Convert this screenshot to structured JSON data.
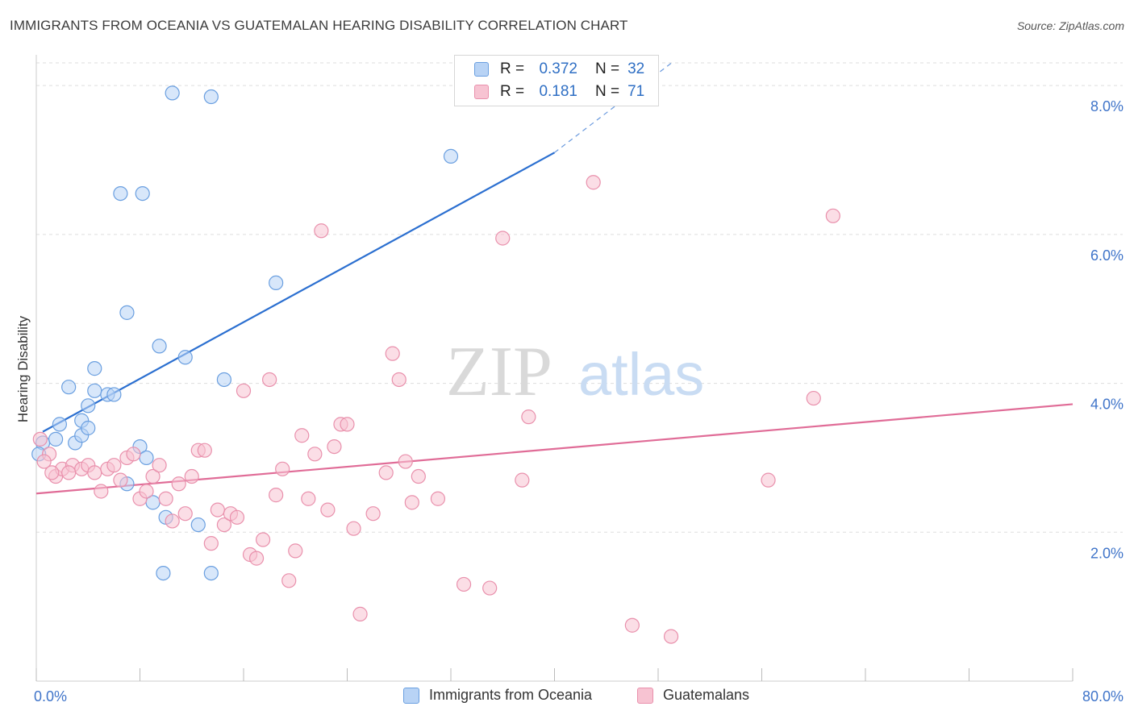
{
  "header": {
    "title": "IMMIGRANTS FROM OCEANIA VS GUATEMALAN HEARING DISABILITY CORRELATION CHART",
    "source": "Source: ZipAtlas.com"
  },
  "watermark": {
    "zip": "ZIP",
    "atlas": "atlas"
  },
  "legend_top": {
    "rows": [
      {
        "r_label": "R =",
        "r_value": "0.372",
        "n_label": "N =",
        "n_value": "32"
      },
      {
        "r_label": "R =",
        "r_value": "0.181",
        "n_label": "N =",
        "n_value": "71"
      }
    ]
  },
  "legend_bottom": {
    "items": [
      {
        "label": "Immigrants from Oceania"
      },
      {
        "label": "Guatemalans"
      }
    ]
  },
  "colors": {
    "blue_fill": "#b8d3f5",
    "blue_stroke": "#6a9fe0",
    "blue_line": "#2b6fd0",
    "pink_fill": "#f7c3d2",
    "pink_stroke": "#e990ac",
    "pink_line": "#e06c97",
    "tick_label": "#3f74c9",
    "grid": "#dddddd"
  },
  "chart_data": {
    "type": "scatter",
    "ylabel": "Hearing Disability",
    "xlim": [
      0,
      80
    ],
    "ylim": [
      0,
      8.5
    ],
    "x_tick_labels": [
      "0.0%",
      "80.0%"
    ],
    "y_ticks": [
      2,
      4,
      6,
      8
    ],
    "y_tick_labels": [
      "2.0%",
      "4.0%",
      "6.0%",
      "8.0%"
    ],
    "grid": true,
    "legend": "top-center",
    "series": [
      {
        "name": "Immigrants from Oceania",
        "color": "blue",
        "points": [
          [
            0.5,
            3.2
          ],
          [
            1.5,
            3.25
          ],
          [
            3.0,
            3.2
          ],
          [
            1.8,
            3.45
          ],
          [
            3.5,
            3.5
          ],
          [
            4.0,
            3.7
          ],
          [
            2.5,
            3.95
          ],
          [
            4.5,
            3.9
          ],
          [
            5.5,
            3.85
          ],
          [
            6.0,
            3.85
          ],
          [
            4.5,
            4.2
          ],
          [
            3.5,
            3.3
          ],
          [
            4.0,
            3.4
          ],
          [
            7.0,
            4.95
          ],
          [
            9.5,
            4.5
          ],
          [
            11.5,
            4.35
          ],
          [
            8.0,
            3.15
          ],
          [
            8.5,
            3.0
          ],
          [
            7.0,
            2.65
          ],
          [
            9.0,
            2.4
          ],
          [
            10.0,
            2.2
          ],
          [
            12.5,
            2.1
          ],
          [
            14.5,
            4.05
          ],
          [
            18.5,
            5.35
          ],
          [
            6.5,
            6.55
          ],
          [
            8.2,
            6.55
          ],
          [
            10.5,
            7.9
          ],
          [
            13.5,
            7.85
          ],
          [
            32.0,
            7.05
          ],
          [
            9.8,
            1.45
          ],
          [
            13.5,
            1.45
          ],
          [
            0.2,
            3.05
          ]
        ],
        "trend": {
          "x": [
            0.5,
            40
          ],
          "y": [
            3.35,
            7.1
          ],
          "dashed_to": [
            49,
            8.3
          ]
        }
      },
      {
        "name": "Guatemalans",
        "color": "pink",
        "points": [
          [
            0.3,
            3.25
          ],
          [
            1.0,
            3.05
          ],
          [
            1.5,
            2.75
          ],
          [
            2.0,
            2.85
          ],
          [
            2.8,
            2.9
          ],
          [
            3.5,
            2.85
          ],
          [
            4.0,
            2.9
          ],
          [
            4.5,
            2.8
          ],
          [
            5.0,
            2.55
          ],
          [
            5.5,
            2.85
          ],
          [
            6.0,
            2.9
          ],
          [
            6.5,
            2.7
          ],
          [
            7.0,
            3.0
          ],
          [
            7.5,
            3.05
          ],
          [
            8.0,
            2.45
          ],
          [
            8.5,
            2.55
          ],
          [
            9.0,
            2.75
          ],
          [
            9.5,
            2.9
          ],
          [
            10.0,
            2.45
          ],
          [
            10.5,
            2.15
          ],
          [
            11.0,
            2.65
          ],
          [
            11.5,
            2.25
          ],
          [
            12.0,
            2.75
          ],
          [
            12.5,
            3.1
          ],
          [
            13.0,
            3.1
          ],
          [
            13.5,
            1.85
          ],
          [
            14.0,
            2.3
          ],
          [
            14.5,
            2.1
          ],
          [
            15.0,
            2.25
          ],
          [
            15.5,
            2.2
          ],
          [
            16.0,
            3.9
          ],
          [
            16.5,
            1.7
          ],
          [
            17.0,
            1.65
          ],
          [
            17.5,
            1.9
          ],
          [
            18.0,
            4.05
          ],
          [
            18.5,
            2.5
          ],
          [
            19.0,
            2.85
          ],
          [
            19.5,
            1.35
          ],
          [
            20.0,
            1.75
          ],
          [
            20.5,
            3.3
          ],
          [
            21.0,
            2.45
          ],
          [
            21.5,
            3.05
          ],
          [
            22.0,
            6.05
          ],
          [
            22.5,
            2.3
          ],
          [
            23.0,
            3.15
          ],
          [
            23.5,
            3.45
          ],
          [
            24.0,
            3.45
          ],
          [
            24.5,
            2.05
          ],
          [
            25.0,
            0.9
          ],
          [
            26.0,
            2.25
          ],
          [
            27.0,
            2.8
          ],
          [
            27.5,
            4.4
          ],
          [
            28.0,
            4.05
          ],
          [
            28.5,
            2.95
          ],
          [
            29.0,
            2.4
          ],
          [
            29.5,
            2.75
          ],
          [
            31.0,
            2.45
          ],
          [
            33.0,
            1.3
          ],
          [
            35.0,
            1.25
          ],
          [
            36.0,
            5.95
          ],
          [
            37.5,
            2.7
          ],
          [
            38.0,
            3.55
          ],
          [
            43.0,
            6.7
          ],
          [
            46.0,
            0.75
          ],
          [
            49.0,
            0.6
          ],
          [
            56.5,
            2.7
          ],
          [
            60.0,
            3.8
          ],
          [
            61.5,
            6.25
          ],
          [
            1.2,
            2.8
          ],
          [
            2.5,
            2.8
          ],
          [
            0.6,
            2.95
          ]
        ],
        "trend": {
          "x": [
            0,
            80
          ],
          "y": [
            2.52,
            3.72
          ]
        }
      }
    ]
  }
}
